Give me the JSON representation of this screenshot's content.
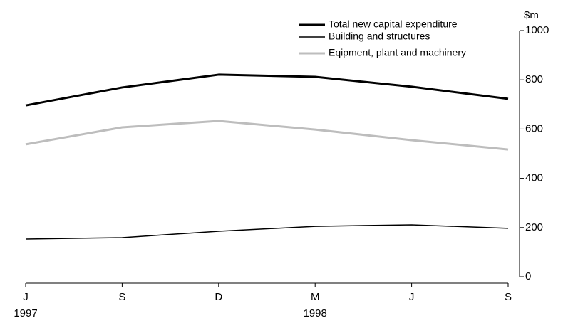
{
  "chart_data": {
    "type": "line",
    "categories": [
      "J",
      "S",
      "D",
      "M",
      "J",
      "S"
    ],
    "category_years": [
      "1997",
      null,
      null,
      "1998",
      null,
      null
    ],
    "y_unit": "$m",
    "ylim": [
      0,
      1000
    ],
    "yticks": [
      0,
      200,
      400,
      600,
      800,
      1000
    ],
    "series": [
      {
        "name": "Total new capital expenditure",
        "color": "#000000",
        "width": 3,
        "values": [
          696,
          769,
          821,
          812,
          772,
          723
        ]
      },
      {
        "name": "Building and structures",
        "color": "#000000",
        "width": 1.5,
        "values": [
          153,
          159,
          185,
          205,
          211,
          197
        ]
      },
      {
        "name": "Eqipment, plant and machinery",
        "color": "#bdbdbd",
        "width": 3,
        "values": [
          538,
          607,
          633,
          598,
          555,
          517
        ]
      }
    ]
  }
}
